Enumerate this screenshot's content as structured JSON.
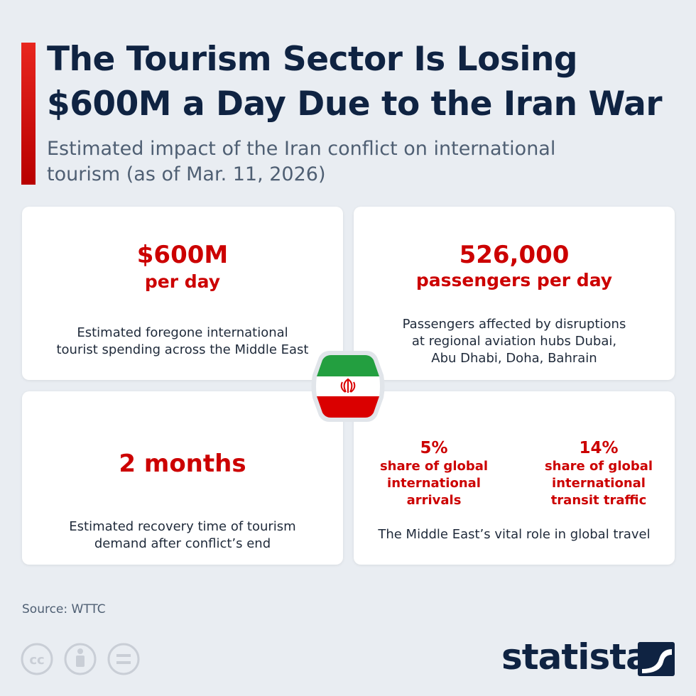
{
  "header": {
    "title_lines": [
      "The Tourism Sector Is Losing",
      "$600M a Day Due to the Iran War"
    ],
    "subtitle_lines": [
      "Estimated impact of the Iran conflict on international",
      "tourism (as of Mar. 11, 2026)"
    ]
  },
  "cards": [
    {
      "headline": "$600M",
      "subline": "per day",
      "description_lines": [
        "Estimated foregone international",
        "tourist spending across the Middle East"
      ]
    },
    {
      "headline": "526,000",
      "subline": "passengers per day",
      "description_lines": [
        "Passengers affected by disruptions",
        "at regional aviation hubs Dubai,",
        "Abu Dhabi, Doha, Bahrain"
      ]
    },
    {
      "headline": "2 months",
      "description_lines": [
        "Estimated recovery time of tourism",
        "demand after conflict’s end"
      ]
    },
    {
      "stats": [
        {
          "value": "5%",
          "label_lines": [
            "share of global",
            "international",
            "arrivals"
          ]
        },
        {
          "value": "14%",
          "label_lines": [
            "share of global",
            "international",
            "transit traffic"
          ]
        }
      ],
      "description_lines": [
        "The Middle East’s vital role in global travel"
      ]
    }
  ],
  "footer": {
    "source": "Source: WTTC",
    "brand": "statista"
  }
}
